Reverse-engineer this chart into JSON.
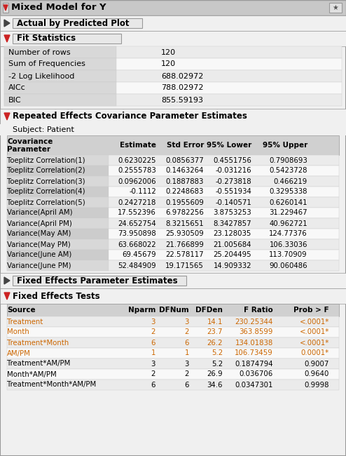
{
  "title": "Mixed Model for Y",
  "fit_stats_rows": [
    [
      "Number of rows",
      "120"
    ],
    [
      "Sum of Frequencies",
      "120"
    ],
    [
      "-2 Log Likelihood",
      "688.02972"
    ],
    [
      "AICc",
      "788.02972"
    ],
    [
      "BIC",
      "855.59193"
    ]
  ],
  "cov_col_headers": [
    "Covariance\nParameter",
    "Estimate",
    "Std Error",
    "95% Lower",
    "95% Upper"
  ],
  "cov_rows": [
    [
      "Toeplitz Correlation(1)",
      "0.6230225",
      "0.0856377",
      "0.4551756",
      "0.7908693"
    ],
    [
      "Toeplitz Correlation(2)",
      "0.2555783",
      "0.1463264",
      "-0.031216",
      "0.5423728"
    ],
    [
      "Toeplitz Correlation(3)",
      "0.0962006",
      "0.1887883",
      "-0.273818",
      "0.466219"
    ],
    [
      "Toeplitz Correlation(4)",
      "-0.1112",
      "0.2248683",
      "-0.551934",
      "0.3295338"
    ],
    [
      "Toeplitz Correlation(5)",
      "0.2427218",
      "0.1955609",
      "-0.140571",
      "0.6260141"
    ],
    [
      "Variance(April AM)",
      "17.552396",
      "6.9782256",
      "3.8753253",
      "31.229467"
    ],
    [
      "Variance(April PM)",
      "24.652754",
      "8.3215651",
      "8.3427857",
      "40.962721"
    ],
    [
      "Variance(May AM)",
      "73.950898",
      "25.930509",
      "23.128035",
      "124.77376"
    ],
    [
      "Variance(May PM)",
      "63.668022",
      "21.766899",
      "21.005684",
      "106.33036"
    ],
    [
      "Variance(June AM)",
      "69.45679",
      "22.578117",
      "25.204495",
      "113.70909"
    ],
    [
      "Variance(June PM)",
      "52.484909",
      "19.171565",
      "14.909332",
      "90.060486"
    ]
  ],
  "fet_col_headers": [
    "Source",
    "Nparm",
    "DFNum",
    "DFDen",
    "F Ratio",
    "Prob > F"
  ],
  "fet_rows": [
    [
      "Treatment",
      "3",
      "3",
      "14.1",
      "230.25344",
      "<.0001*"
    ],
    [
      "Month",
      "2",
      "2",
      "23.7",
      "363.8599",
      "<.0001*"
    ],
    [
      "Treatment*Month",
      "6",
      "6",
      "26.2",
      "134.01838",
      "<.0001*"
    ],
    [
      "AM/PM",
      "1",
      "1",
      "5.2",
      "106.73459",
      "0.0001*"
    ],
    [
      "Treatment*AM/PM",
      "3",
      "3",
      "5.2",
      "0.1874794",
      "0.9007"
    ],
    [
      "Month*AM/PM",
      "2",
      "2",
      "26.9",
      "0.036706",
      "0.9640"
    ],
    [
      "Treatment*Month*AM/PM",
      "6",
      "6",
      "34.6",
      "0.0347301",
      "0.9998"
    ]
  ],
  "fet_orange_rows": [
    0,
    1,
    2,
    3
  ],
  "bg_color": "#f0f0f0",
  "title_bar_color": "#c8c8c8",
  "section_bar_color": "#d8d8d8",
  "section_bar_color2": "#e4e4e4",
  "table_header_color": "#d0d0d0",
  "row_even_color": "#ebebeb",
  "row_odd_color": "#f8f8f8",
  "fit_label_bg": "#d8d8d8",
  "orange_color": "#cc6600",
  "black_color": "#000000",
  "border_color": "#999999"
}
